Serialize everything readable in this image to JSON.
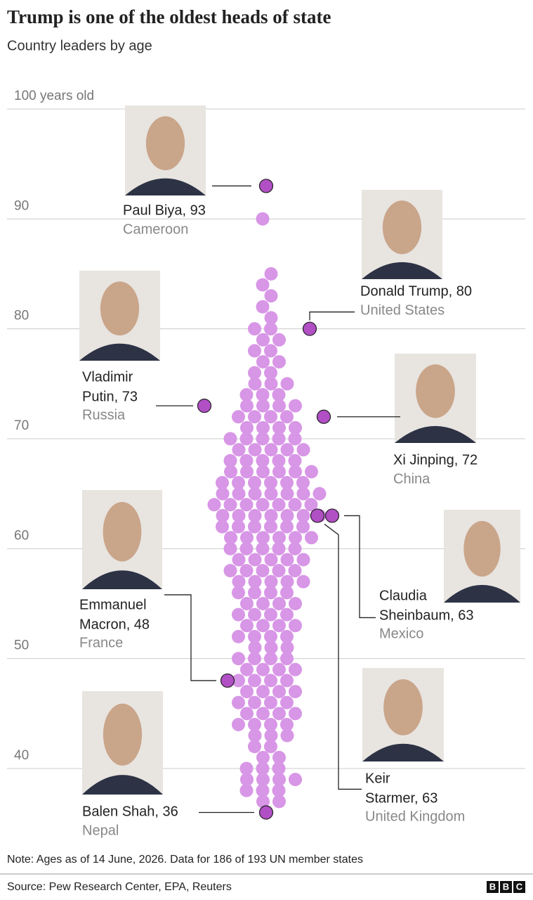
{
  "chart_data": {
    "type": "beeswarm",
    "title": "Trump is one of the oldest heads of state",
    "subtitle": "Country leaders by age",
    "ylim": [
      35,
      100
    ],
    "yticks": [
      {
        "value": 100,
        "label": "100 years old"
      },
      90,
      80,
      70,
      60,
      50,
      40
    ],
    "color": "#d896e6",
    "highlight_color": "#b14fc5",
    "values": [
      37,
      37,
      38,
      38,
      38,
      39,
      39,
      39,
      39,
      40,
      40,
      40,
      41,
      41,
      42,
      42,
      43,
      43,
      43,
      44,
      44,
      44,
      44,
      45,
      45,
      45,
      45,
      46,
      46,
      46,
      46,
      47,
      47,
      47,
      47,
      48,
      48,
      48,
      48,
      49,
      49,
      49,
      49,
      50,
      50,
      50,
      50,
      51,
      51,
      51,
      52,
      52,
      52,
      52,
      53,
      53,
      53,
      53,
      54,
      54,
      54,
      54,
      55,
      55,
      55,
      55,
      56,
      56,
      56,
      56,
      57,
      57,
      57,
      57,
      57,
      58,
      58,
      58,
      58,
      58,
      59,
      59,
      59,
      59,
      59,
      60,
      60,
      60,
      60,
      60,
      61,
      61,
      61,
      61,
      61,
      61,
      62,
      62,
      62,
      62,
      62,
      62,
      63,
      63,
      63,
      63,
      63,
      63,
      63,
      64,
      64,
      64,
      64,
      64,
      64,
      64,
      65,
      65,
      65,
      65,
      65,
      65,
      65,
      66,
      66,
      66,
      66,
      66,
      66,
      67,
      67,
      67,
      67,
      67,
      67,
      68,
      68,
      68,
      68,
      68,
      69,
      69,
      69,
      69,
      69,
      70,
      70,
      70,
      70,
      70,
      71,
      71,
      71,
      71,
      72,
      72,
      72,
      72,
      73,
      73,
      73,
      73,
      74,
      74,
      74,
      75,
      75,
      75,
      76,
      76,
      77,
      77,
      78,
      78,
      79,
      79,
      80,
      80,
      81,
      82,
      83,
      84,
      85,
      90
    ],
    "highlights": [
      {
        "lines": [
          "Paul Biya, 93"
        ],
        "value": 93,
        "country": "Cameroon"
      },
      {
        "lines": [
          "Donald Trump, 80"
        ],
        "value": 80,
        "country": "United States"
      },
      {
        "lines": [
          "Vladimir",
          "Putin, 73"
        ],
        "value": 73,
        "country": "Russia"
      },
      {
        "lines": [
          "Xi Jinping, 72"
        ],
        "value": 72,
        "country": "China"
      },
      {
        "lines": [
          "Claudia",
          "Sheinbaum, 63"
        ],
        "value": 63,
        "country": "Mexico"
      },
      {
        "lines": [
          "Keir",
          "Starmer, 63"
        ],
        "value": 63,
        "country": "United Kingdom"
      },
      {
        "lines": [
          "Emmanuel",
          "Macron, 48"
        ],
        "value": 48,
        "country": "France"
      },
      {
        "lines": [
          "Balen Shah, 36"
        ],
        "value": 36,
        "country": "Nepal"
      }
    ],
    "note": "Note: Ages as of 14 June, 2026. Data for 186 of 193 UN member states",
    "source": "Source: Pew Research Center, EPA, Reuters",
    "logo": [
      "B",
      "B",
      "C"
    ]
  }
}
